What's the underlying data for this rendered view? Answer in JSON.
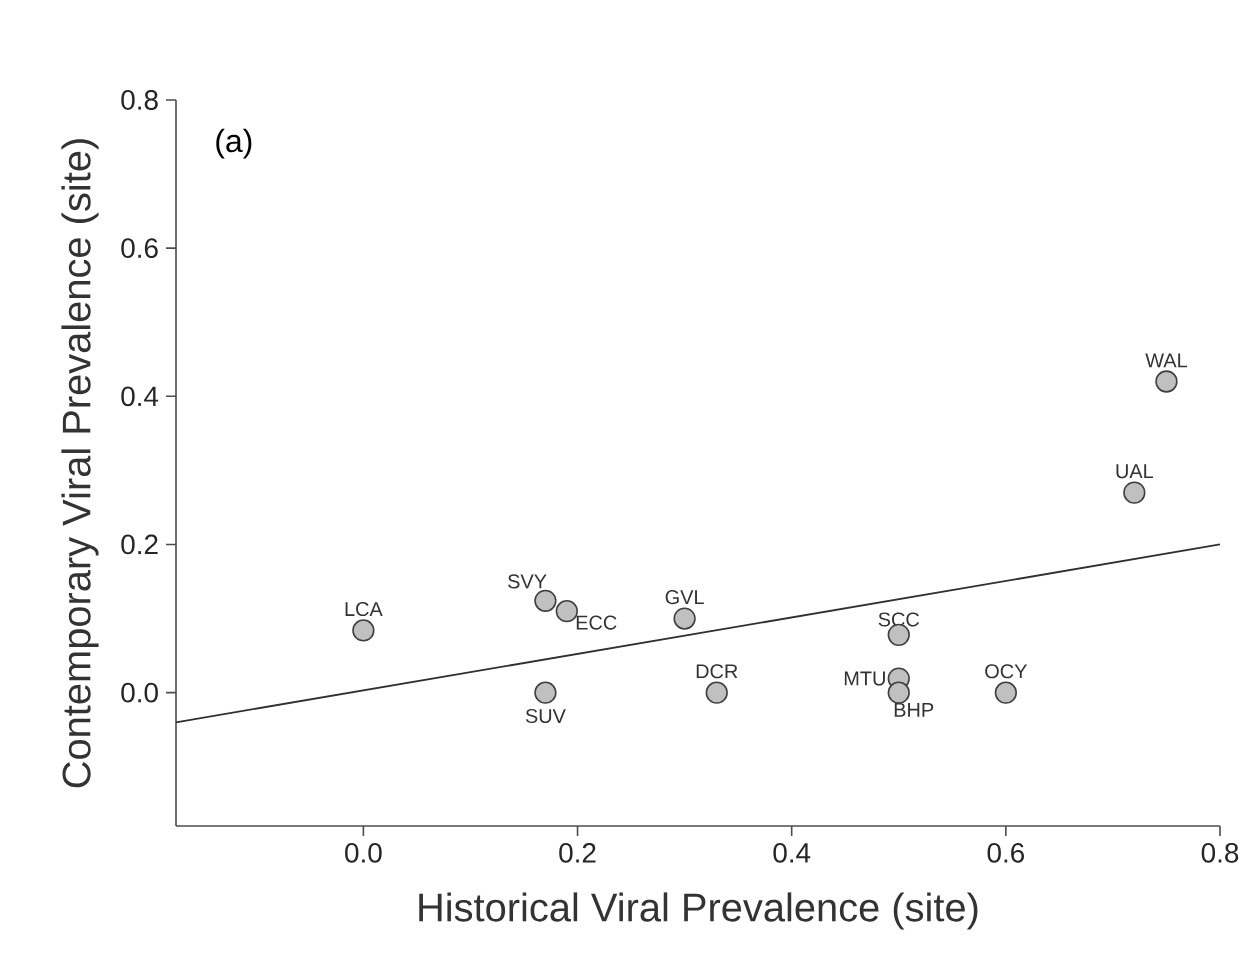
{
  "chart_data": {
    "type": "scatter",
    "xlabel": "Historical Viral Prevalence (site)",
    "ylabel": "Contemporary Viral Prevalence (site)",
    "xlim": [
      -0.175,
      0.8
    ],
    "ylim": [
      -0.18,
      0.8
    ],
    "xticks": [
      {
        "value": 0,
        "label": "0.0"
      },
      {
        "value": 0.2,
        "label": "0.2"
      },
      {
        "value": 0.4,
        "label": "0.4"
      },
      {
        "value": 0.6,
        "label": "0.6"
      },
      {
        "value": 0.8,
        "label": "0.8"
      }
    ],
    "yticks": [
      {
        "value": 0,
        "label": "0.0"
      },
      {
        "value": 0.2,
        "label": "0.2"
      },
      {
        "value": 0.4,
        "label": "0.4"
      },
      {
        "value": 0.6,
        "label": "0.6"
      },
      {
        "value": 0.8,
        "label": "0.8"
      }
    ],
    "grid": false,
    "marker": "circle",
    "series": [
      {
        "color": "#c0c0c0",
        "x": [
          0.0,
          0.17,
          0.19,
          0.17,
          0.3,
          0.33,
          0.5,
          0.5,
          0.5,
          0.6,
          0.72,
          0.75
        ],
        "values": [
          0.084,
          0.124,
          0.11,
          0.0,
          0.1,
          0.0,
          0.078,
          0.019,
          0.0,
          0.0,
          0.27,
          0.42
        ]
      },
      {
        "type": "line",
        "marker": "none",
        "color": "#303030",
        "x": [
          -0.175,
          0.8
        ],
        "values": [
          -0.04,
          0.2
        ]
      }
    ],
    "annotations": [
      "(a)",
      {
        "text": "LCA",
        "x": 0.0,
        "y": 0.084
      },
      {
        "text": "SVY",
        "x": 0.17,
        "y": 0.124
      },
      {
        "text": "ECC",
        "x": 0.19,
        "y": 0.11
      },
      {
        "text": "SUV",
        "x": 0.17,
        "y": 0.0
      },
      {
        "text": "GVL",
        "x": 0.3,
        "y": 0.1
      },
      {
        "text": "DCR",
        "x": 0.33,
        "y": 0.0
      },
      {
        "text": "SCC",
        "x": 0.5,
        "y": 0.078
      },
      {
        "text": "MTU",
        "x": 0.5,
        "y": 0.019
      },
      {
        "text": "BHP",
        "x": 0.5,
        "y": 0.0
      },
      {
        "text": "OCY",
        "x": 0.6,
        "y": 0.0
      },
      {
        "text": "UAL",
        "x": 0.72,
        "y": 0.27
      },
      {
        "text": "WAL",
        "x": 0.75,
        "y": 0.42
      }
    ]
  }
}
